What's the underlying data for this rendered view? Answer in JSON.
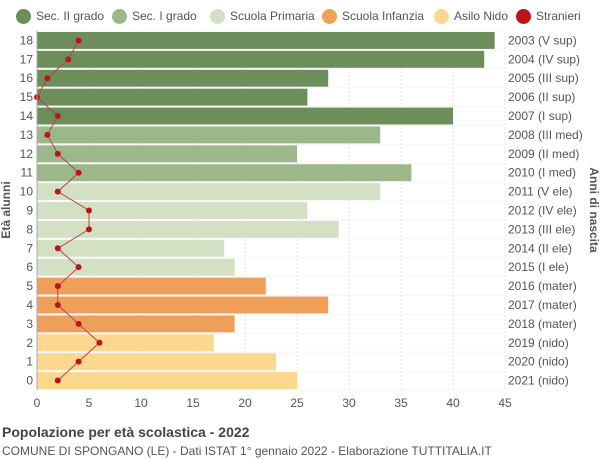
{
  "chart_data": {
    "type": "bar",
    "orientation": "horizontal",
    "ylabel_left": "Età alunni",
    "ylabel_right": "Anni di nascita",
    "xlim": [
      0,
      45
    ],
    "x_ticks": [
      0,
      5,
      10,
      15,
      20,
      25,
      30,
      35,
      40,
      45
    ],
    "grid": true,
    "legend_position": "top",
    "legend": [
      {
        "name": "Sec. II grado",
        "color": "#6b8e5a"
      },
      {
        "name": "Sec. I grado",
        "color": "#9cb88a"
      },
      {
        "name": "Scuola Primaria",
        "color": "#d3e0c4"
      },
      {
        "name": "Scuola Infanzia",
        "color": "#eea05a"
      },
      {
        "name": "Asilo Nido",
        "color": "#fcd88e"
      },
      {
        "name": "Stranieri",
        "color": "#c0121a"
      }
    ],
    "bars": [
      {
        "age": "18",
        "year": "2003 (V sup)",
        "value": 44,
        "stranieri": 4,
        "group": 0
      },
      {
        "age": "17",
        "year": "2004 (IV sup)",
        "value": 43,
        "stranieri": 3,
        "group": 0
      },
      {
        "age": "16",
        "year": "2005 (III sup)",
        "value": 28,
        "stranieri": 1,
        "group": 0
      },
      {
        "age": "15",
        "year": "2006 (II sup)",
        "value": 26,
        "stranieri": 0,
        "group": 0
      },
      {
        "age": "14",
        "year": "2007 (I sup)",
        "value": 40,
        "stranieri": 2,
        "group": 0
      },
      {
        "age": "13",
        "year": "2008 (III med)",
        "value": 33,
        "stranieri": 1,
        "group": 1
      },
      {
        "age": "12",
        "year": "2009 (II med)",
        "value": 25,
        "stranieri": 2,
        "group": 1
      },
      {
        "age": "11",
        "year": "2010 (I med)",
        "value": 36,
        "stranieri": 4,
        "group": 1
      },
      {
        "age": "10",
        "year": "2011 (V ele)",
        "value": 33,
        "stranieri": 2,
        "group": 2
      },
      {
        "age": "9",
        "year": "2012 (IV ele)",
        "value": 26,
        "stranieri": 5,
        "group": 2
      },
      {
        "age": "8",
        "year": "2013 (III ele)",
        "value": 29,
        "stranieri": 5,
        "group": 2
      },
      {
        "age": "7",
        "year": "2014 (II ele)",
        "value": 18,
        "stranieri": 2,
        "group": 2
      },
      {
        "age": "6",
        "year": "2015 (I ele)",
        "value": 19,
        "stranieri": 4,
        "group": 2
      },
      {
        "age": "5",
        "year": "2016 (mater)",
        "value": 22,
        "stranieri": 2,
        "group": 3
      },
      {
        "age": "4",
        "year": "2017 (mater)",
        "value": 28,
        "stranieri": 2,
        "group": 3
      },
      {
        "age": "3",
        "year": "2018 (mater)",
        "value": 19,
        "stranieri": 4,
        "group": 3
      },
      {
        "age": "2",
        "year": "2019 (nido)",
        "value": 17,
        "stranieri": 6,
        "group": 4
      },
      {
        "age": "1",
        "year": "2020 (nido)",
        "value": 23,
        "stranieri": 4,
        "group": 4
      },
      {
        "age": "0",
        "year": "2021 (nido)",
        "value": 25,
        "stranieri": 2,
        "group": 4
      }
    ]
  },
  "footer": {
    "title": "Popolazione per età scolastica - 2022",
    "subtitle": "COMUNE DI SPONGANO (LE) - Dati ISTAT 1° gennaio 2022 - Elaborazione TUTTITALIA.IT"
  }
}
